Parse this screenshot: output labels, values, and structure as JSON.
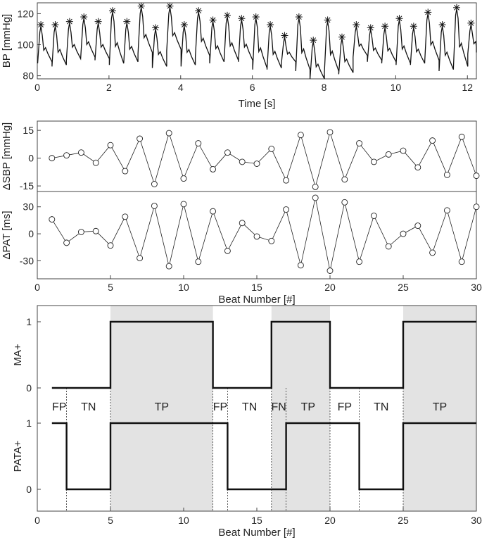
{
  "chart_data": [
    {
      "type": "line",
      "xlabel": "Time [s]",
      "ylabel": "BP [mmHg]",
      "xlim": [
        0,
        12.25
      ],
      "ylim": [
        78,
        127
      ],
      "xticks": [
        0,
        2,
        4,
        6,
        8,
        10,
        12
      ],
      "yticks": [
        80,
        100,
        120
      ],
      "marker": "asterisk",
      "peak_times": [
        0.1,
        0.5,
        0.9,
        1.3,
        1.7,
        2.1,
        2.5,
        2.9,
        3.3,
        3.7,
        4.1,
        4.5,
        4.9,
        5.3,
        5.7,
        6.1,
        6.5,
        6.9,
        7.3,
        7.7,
        8.1,
        8.5,
        8.9,
        9.3,
        9.7,
        10.1,
        10.5,
        10.9,
        11.3,
        11.7,
        12.1
      ],
      "peak_values": [
        112,
        112,
        114,
        117,
        114,
        121,
        114,
        124,
        110,
        124,
        112,
        121,
        115,
        118,
        116,
        117,
        112,
        105,
        117,
        102,
        115,
        104,
        112,
        110,
        111,
        116,
        111,
        120,
        112,
        123,
        113
      ],
      "trough_values": [
        88,
        86,
        90,
        91,
        90,
        87,
        88,
        94,
        85,
        96,
        86,
        92,
        88,
        89,
        89,
        84,
        84,
        88,
        83,
        77,
        82,
        81,
        92,
        89,
        88,
        87,
        87,
        89,
        83,
        85,
        94
      ]
    },
    {
      "type": "line",
      "xlabel": "",
      "ylabel": "ΔSBP [mmHg]",
      "xlim": [
        0,
        30
      ],
      "ylim": [
        -18,
        20
      ],
      "yticks": [
        -15,
        0,
        15
      ],
      "marker": "circle",
      "x": [
        1,
        2,
        3,
        4,
        5,
        6,
        7,
        8,
        9,
        10,
        11,
        12,
        13,
        14,
        15,
        16,
        17,
        18,
        19,
        20,
        21,
        22,
        23,
        24,
        25,
        26,
        27,
        28,
        29,
        30
      ],
      "y": [
        0,
        1.5,
        3,
        -2.5,
        7,
        -7,
        10.5,
        -14,
        13.5,
        -11,
        8,
        -6,
        3,
        -2,
        -3,
        5,
        -12,
        12.5,
        -15.5,
        14,
        -11.5,
        8,
        -2,
        2,
        4,
        -5,
        9.5,
        -9,
        11.5,
        -9.5
      ]
    },
    {
      "type": "line",
      "xlabel": "Beat Number [#]",
      "ylabel": "ΔPAT [ms]",
      "xlim": [
        0,
        30
      ],
      "ylim": [
        -50,
        47
      ],
      "xticks": [
        0,
        5,
        10,
        15,
        20,
        25,
        30
      ],
      "yticks": [
        -30,
        0,
        30
      ],
      "marker": "circle",
      "x": [
        1,
        2,
        3,
        4,
        5,
        6,
        7,
        8,
        9,
        10,
        11,
        12,
        13,
        14,
        15,
        16,
        17,
        18,
        19,
        20,
        21,
        22,
        23,
        24,
        25,
        26,
        27,
        28,
        29,
        30
      ],
      "y": [
        16,
        -10,
        2,
        3,
        -13,
        19,
        -27,
        31,
        -36,
        33,
        -31,
        25,
        -19,
        12,
        -3,
        -8,
        27,
        -35,
        40,
        -41,
        35,
        -31,
        20,
        -14,
        0,
        9,
        -21,
        26,
        -31,
        30
      ]
    },
    {
      "type": "line",
      "style": "step",
      "xlabel": "Beat Number [#]",
      "xlim": [
        0,
        30
      ],
      "xticks": [
        0,
        5,
        10,
        15,
        20,
        25,
        30
      ],
      "series": [
        {
          "name": "MA+",
          "ylabel": "MA+",
          "yticks": [
            0,
            1
          ],
          "x": [
            1,
            5,
            12,
            16,
            20,
            25,
            30
          ],
          "y": [
            0,
            1,
            0,
            1,
            0,
            1,
            1
          ]
        },
        {
          "name": "PATA+",
          "ylabel": "PATA+",
          "yticks": [
            0,
            1
          ],
          "x": [
            1,
            2,
            5,
            13,
            17,
            22,
            25,
            30
          ],
          "y": [
            1,
            0,
            1,
            0,
            1,
            0,
            1,
            1
          ]
        }
      ],
      "shaded_regions": [
        [
          5,
          12
        ],
        [
          16,
          20
        ],
        [
          25,
          30
        ]
      ],
      "annotations": [
        {
          "label": "FP",
          "from": 1,
          "to": 2
        },
        {
          "label": "TN",
          "from": 2,
          "to": 5
        },
        {
          "label": "TP",
          "from": 5,
          "to": 12
        },
        {
          "label": "FP",
          "from": 12,
          "to": 13
        },
        {
          "label": "TN",
          "from": 13,
          "to": 16
        },
        {
          "label": "FN",
          "from": 16,
          "to": 17
        },
        {
          "label": "TP",
          "from": 17,
          "to": 20
        },
        {
          "label": "FP",
          "from": 20,
          "to": 22
        },
        {
          "label": "TN",
          "from": 22,
          "to": 25
        },
        {
          "label": "TP",
          "from": 25,
          "to": 30
        }
      ],
      "divider_x": [
        2,
        5,
        12,
        13,
        16,
        17,
        20,
        22,
        25
      ]
    }
  ]
}
